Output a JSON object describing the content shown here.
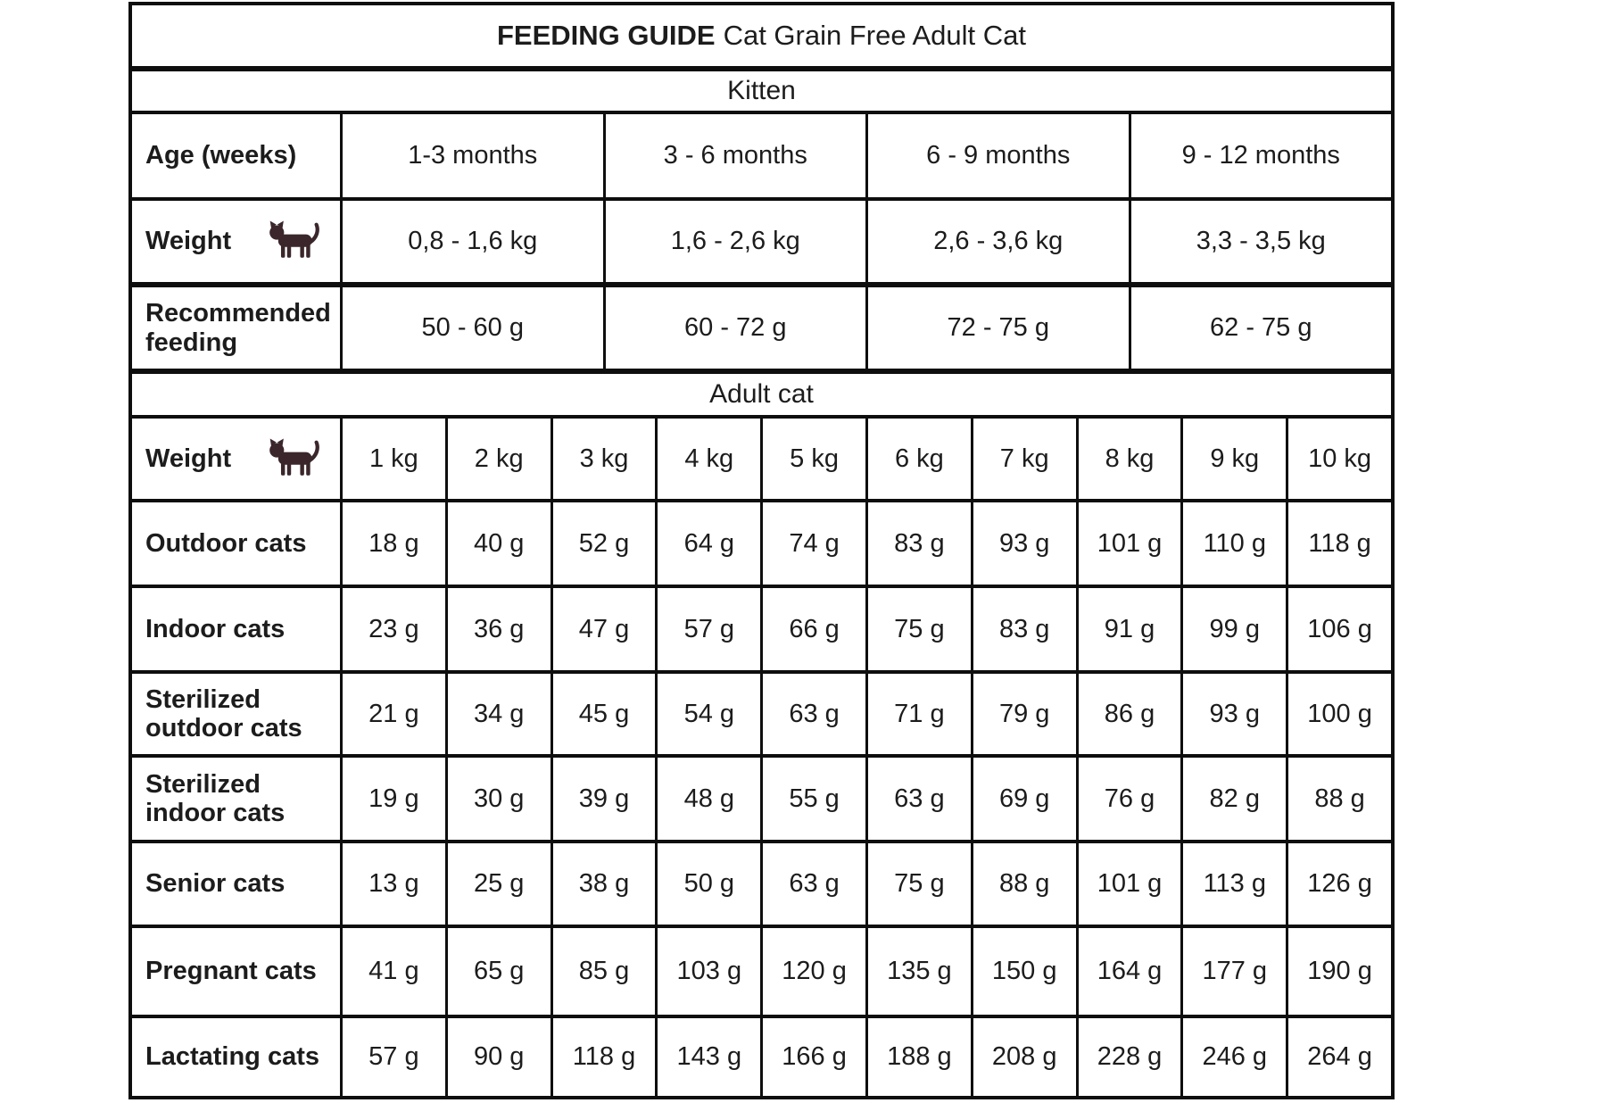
{
  "title": {
    "bold": "FEEDING GUIDE",
    "product": "Cat Grain Free Adult Cat"
  },
  "kitten": {
    "header": "Kitten",
    "rows": [
      {
        "label": "Age (weeks)",
        "icon": false,
        "values": [
          "1-3 months",
          "3 - 6 months",
          "6 - 9 months",
          "9 - 12 months"
        ]
      },
      {
        "label": "Weight",
        "icon": true,
        "values": [
          "0,8 - 1,6 kg",
          "1,6 - 2,6 kg",
          "2,6 - 3,6 kg",
          "3,3 - 3,5 kg"
        ]
      },
      {
        "label": "Recommended feeding",
        "icon": false,
        "values": [
          "50 - 60 g",
          "60 - 72 g",
          "72 - 75 g",
          "62 - 75 g"
        ]
      }
    ]
  },
  "adult": {
    "header": "Adult cat",
    "weight_label": "Weight",
    "weights": [
      "1 kg",
      "2 kg",
      "3 kg",
      "4 kg",
      "5 kg",
      "6 kg",
      "7 kg",
      "8 kg",
      "9 kg",
      "10 kg"
    ],
    "rows": [
      {
        "label": "Outdoor cats",
        "values": [
          "18 g",
          "40 g",
          "52 g",
          "64 g",
          "74 g",
          "83 g",
          "93 g",
          "101 g",
          "110 g",
          "118 g"
        ]
      },
      {
        "label": "Indoor cats",
        "values": [
          "23 g",
          "36 g",
          "47 g",
          "57 g",
          "66 g",
          "75 g",
          "83 g",
          "91 g",
          "99 g",
          "106 g"
        ]
      },
      {
        "label": "Sterilized outdoor cats",
        "values": [
          "21 g",
          "34 g",
          "45 g",
          "54 g",
          "63 g",
          "71 g",
          "79 g",
          "86 g",
          "93 g",
          "100 g"
        ]
      },
      {
        "label": "Sterilized indoor cats",
        "values": [
          "19 g",
          "30 g",
          "39 g",
          "48 g",
          "55 g",
          "63 g",
          "69 g",
          "76 g",
          "82 g",
          "88 g"
        ]
      },
      {
        "label": "Senior cats",
        "values": [
          "13 g",
          "25 g",
          "38 g",
          "50 g",
          "63 g",
          "75 g",
          "88 g",
          "101 g",
          "113 g",
          "126 g"
        ]
      },
      {
        "label": "Pregnant cats",
        "values": [
          "41 g",
          "65 g",
          "85 g",
          "103 g",
          "120 g",
          "135 g",
          "150 g",
          "164 g",
          "177 g",
          "190 g"
        ]
      },
      {
        "label": "Lactating cats",
        "values": [
          "57 g",
          "90 g",
          "118 g",
          "143 g",
          "166 g",
          "188 g",
          "208 g",
          "228 g",
          "246 g",
          "264 g"
        ]
      }
    ]
  },
  "icons": {
    "cat": "walking-cat-silhouette"
  },
  "colors": {
    "border": "#0e0e0e",
    "text": "#1c1c1c",
    "cat_icon": "#3a262b",
    "background": "#ffffff"
  }
}
